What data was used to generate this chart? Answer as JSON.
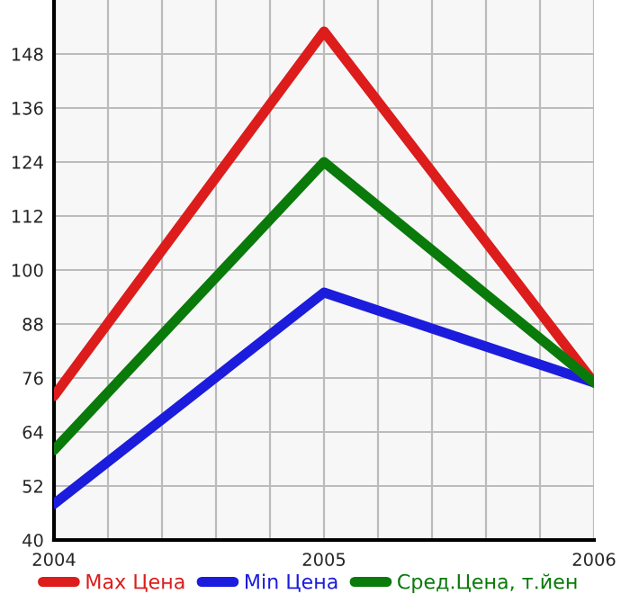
{
  "chart_data": {
    "type": "line",
    "x": [
      2004,
      2005,
      2006
    ],
    "series": [
      {
        "name": "Max Цена",
        "color": "#dd1c1c",
        "values": [
          72,
          153,
          75
        ]
      },
      {
        "name": "Min Цена",
        "color": "#1c1cdd",
        "values": [
          48,
          95,
          75
        ]
      },
      {
        "name": "Сред.Цена, т.йен",
        "color": "#0a7a0a",
        "values": [
          60,
          124,
          75
        ]
      }
    ],
    "xlim": [
      2004,
      2006
    ],
    "xticks": [
      2004,
      {
        "value": 2004.2,
        "label": null
      },
      {
        "value": 2004.4,
        "label": null
      },
      {
        "value": 2004.6,
        "label": null
      },
      {
        "value": 2004.8,
        "label": null
      },
      2005,
      {
        "value": 2005.2,
        "label": null
      },
      {
        "value": 2005.4,
        "label": null
      },
      {
        "value": 2005.6,
        "label": null
      },
      {
        "value": 2005.8,
        "label": null
      },
      2006
    ],
    "ylim": [
      40,
      160
    ],
    "yticks": [
      40,
      52,
      64,
      76,
      88,
      100,
      112,
      124,
      136,
      148
    ],
    "grid": true,
    "legend": "bottom",
    "marker": "none",
    "line_style": "solid"
  }
}
